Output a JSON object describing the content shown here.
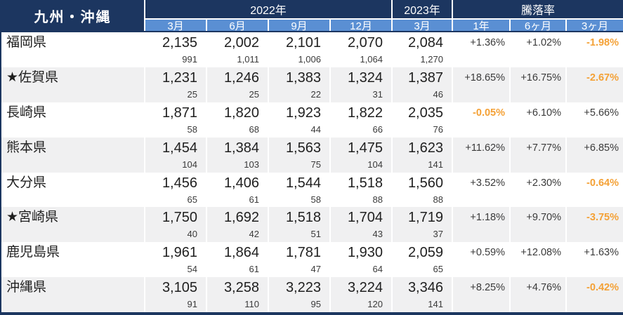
{
  "chart_data": {
    "type": "table",
    "title": "九州・沖縄",
    "column_groups": [
      {
        "label": "2022年",
        "span": 4
      },
      {
        "label": "2023年",
        "span": 1
      },
      {
        "label": "騰落率",
        "span": 3
      }
    ],
    "columns": [
      "3月",
      "6月",
      "9月",
      "12月",
      "3月",
      "1年",
      "6ヶ月",
      "3ヶ月"
    ],
    "rows": [
      {
        "name": "福岡県",
        "values": [
          "2,135",
          "2,002",
          "2,101",
          "2,070",
          "2,084"
        ],
        "sub_values": [
          "991",
          "1,011",
          "1,006",
          "1,064",
          "1,270"
        ],
        "changes": [
          "+1.36%",
          "+1.02%",
          "-1.98%"
        ]
      },
      {
        "name": "★佐賀県",
        "values": [
          "1,231",
          "1,246",
          "1,383",
          "1,324",
          "1,387"
        ],
        "sub_values": [
          "25",
          "25",
          "22",
          "31",
          "46"
        ],
        "changes": [
          "+18.65%",
          "+16.75%",
          "-2.67%"
        ]
      },
      {
        "name": "長崎県",
        "values": [
          "1,871",
          "1,820",
          "1,923",
          "1,822",
          "2,035"
        ],
        "sub_values": [
          "58",
          "68",
          "44",
          "66",
          "76"
        ],
        "changes": [
          "-0.05%",
          "+6.10%",
          "+5.66%"
        ]
      },
      {
        "name": "熊本県",
        "values": [
          "1,454",
          "1,384",
          "1,563",
          "1,475",
          "1,623"
        ],
        "sub_values": [
          "104",
          "103",
          "75",
          "104",
          "141"
        ],
        "changes": [
          "+11.62%",
          "+7.77%",
          "+6.85%"
        ]
      },
      {
        "name": "大分県",
        "values": [
          "1,456",
          "1,406",
          "1,544",
          "1,518",
          "1,560"
        ],
        "sub_values": [
          "65",
          "61",
          "58",
          "88",
          "88"
        ],
        "changes": [
          "+3.52%",
          "+2.30%",
          "-0.64%"
        ]
      },
      {
        "name": "★宮崎県",
        "values": [
          "1,750",
          "1,692",
          "1,518",
          "1,704",
          "1,719"
        ],
        "sub_values": [
          "40",
          "42",
          "51",
          "43",
          "37"
        ],
        "changes": [
          "+1.18%",
          "+9.70%",
          "-3.75%"
        ]
      },
      {
        "name": "鹿児島県",
        "values": [
          "1,961",
          "1,864",
          "1,781",
          "1,930",
          "2,059"
        ],
        "sub_values": [
          "54",
          "61",
          "47",
          "64",
          "65"
        ],
        "changes": [
          "+0.59%",
          "+12.08%",
          "+1.63%"
        ]
      },
      {
        "name": "沖縄県",
        "values": [
          "3,105",
          "3,258",
          "3,223",
          "3,224",
          "3,346"
        ],
        "sub_values": [
          "91",
          "110",
          "95",
          "120",
          "141"
        ],
        "changes": [
          "+8.25%",
          "+4.76%",
          "-0.42%"
        ]
      }
    ],
    "layout": {
      "grid": "off",
      "alternating_rows": true
    }
  },
  "colors": {
    "header_dark": "#1c3660",
    "header_blue": "#5a8fd3",
    "row_alt": "#f0f0f1",
    "negative_change": "#f4a136",
    "text": "#1f1f1f"
  }
}
